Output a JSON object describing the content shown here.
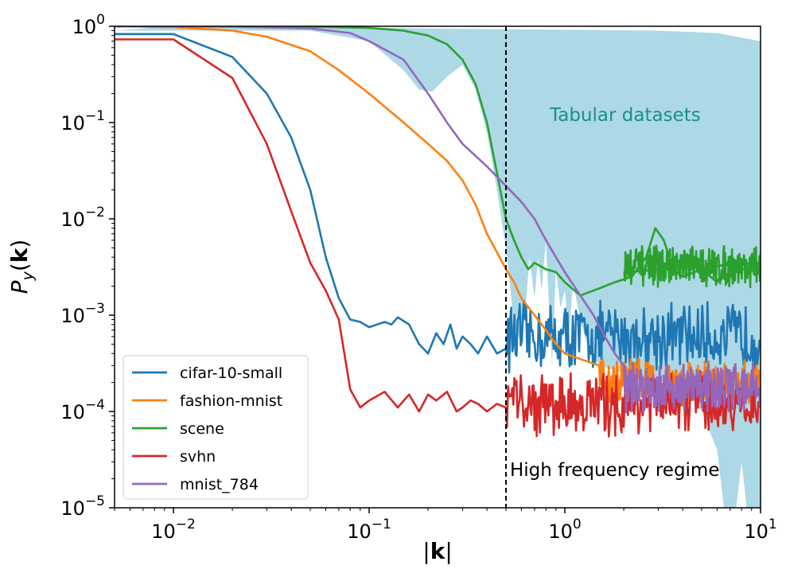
{
  "chart_data": {
    "type": "line",
    "xscale": "log",
    "yscale": "log",
    "xlim": [
      0.005,
      10
    ],
    "ylim": [
      1e-05,
      1
    ],
    "xlabel": "|k|",
    "ylabel": "P_y(k)",
    "x_ticks": [
      {
        "base": "10",
        "exp": "−2",
        "value": 0.01
      },
      {
        "base": "10",
        "exp": "−1",
        "value": 0.1
      },
      {
        "base": "10",
        "exp": "0",
        "value": 1
      },
      {
        "base": "10",
        "exp": "1",
        "value": 10
      }
    ],
    "y_ticks": [
      {
        "base": "10",
        "exp": "0",
        "value": 1
      },
      {
        "base": "10",
        "exp": "−1",
        "value": 0.1
      },
      {
        "base": "10",
        "exp": "−2",
        "value": 0.01
      },
      {
        "base": "10",
        "exp": "−3",
        "value": 0.001
      },
      {
        "base": "10",
        "exp": "−4",
        "value": 0.0001
      },
      {
        "base": "10",
        "exp": "−5",
        "value": 1e-05
      }
    ],
    "vline": {
      "x": 0.5,
      "style": "dashed",
      "label": "High frequency regime"
    },
    "shaded_region": {
      "label": "Tabular datasets",
      "color": "#add8e6",
      "label_color": "#1a8f8f",
      "upper": [
        [
          0.01,
          1
        ],
        [
          0.05,
          0.99
        ],
        [
          0.1,
          0.97
        ],
        [
          0.2,
          0.95
        ],
        [
          0.5,
          0.93
        ],
        [
          1,
          0.92
        ],
        [
          3,
          0.9
        ],
        [
          6,
          0.85
        ],
        [
          10,
          0.7
        ]
      ],
      "lower": [
        [
          0.005,
          0.9
        ],
        [
          0.05,
          0.9
        ],
        [
          0.1,
          0.7
        ],
        [
          0.15,
          0.35
        ],
        [
          0.18,
          0.22
        ],
        [
          0.21,
          0.21
        ],
        [
          0.25,
          0.3
        ],
        [
          0.3,
          0.4
        ],
        [
          0.35,
          0.22
        ],
        [
          0.4,
          0.08
        ],
        [
          0.45,
          0.02
        ],
        [
          0.5,
          0.005
        ],
        [
          0.55,
          0.0008
        ],
        [
          0.6,
          0.0005
        ],
        [
          0.63,
          0.0012
        ],
        [
          0.66,
          0.004
        ],
        [
          0.7,
          0.0015
        ],
        [
          0.73,
          0.004
        ],
        [
          0.76,
          0.0018
        ],
        [
          0.8,
          0.006
        ],
        [
          0.83,
          0.0012
        ],
        [
          0.86,
          0.0003
        ],
        [
          0.9,
          0.003
        ],
        [
          0.95,
          0.0012
        ],
        [
          1.0,
          0.0018
        ],
        [
          1.05,
          0.0006
        ],
        [
          1.1,
          0.0022
        ],
        [
          1.2,
          0.0009
        ],
        [
          1.3,
          0.0005
        ],
        [
          1.5,
          0.0003
        ],
        [
          2.0,
          0.00025
        ],
        [
          3.0,
          0.00022
        ],
        [
          4.0,
          0.00018
        ],
        [
          5.0,
          0.0001
        ],
        [
          6.0,
          4e-05
        ],
        [
          6.5,
          1e-05
        ],
        [
          7.5,
          1e-05
        ],
        [
          8.0,
          3e-05
        ],
        [
          8.5,
          1e-05
        ],
        [
          10,
          1e-05
        ]
      ]
    },
    "legend_position": "lower-left",
    "series": [
      {
        "name": "cifar-10-small",
        "color": "#1f77b4",
        "points": [
          [
            0.005,
            0.83
          ],
          [
            0.01,
            0.83
          ],
          [
            0.02,
            0.48
          ],
          [
            0.03,
            0.2
          ],
          [
            0.04,
            0.07
          ],
          [
            0.05,
            0.02
          ],
          [
            0.06,
            0.004
          ],
          [
            0.07,
            0.0015
          ],
          [
            0.08,
            0.0009
          ],
          [
            0.09,
            0.00085
          ],
          [
            0.1,
            0.00075
          ],
          [
            0.11,
            0.0008
          ],
          [
            0.12,
            0.00085
          ],
          [
            0.13,
            0.0008
          ],
          [
            0.14,
            0.00095
          ],
          [
            0.16,
            0.0008
          ],
          [
            0.18,
            0.0005
          ],
          [
            0.2,
            0.0004
          ],
          [
            0.22,
            0.00065
          ],
          [
            0.24,
            0.0005
          ],
          [
            0.26,
            0.0008
          ],
          [
            0.28,
            0.00045
          ],
          [
            0.3,
            0.0006
          ],
          [
            0.33,
            0.0005
          ],
          [
            0.36,
            0.0004
          ],
          [
            0.4,
            0.0006
          ],
          [
            0.45,
            0.0004
          ],
          [
            0.5,
            0.00045
          ]
        ],
        "noise": {
          "x_range": [
            0.5,
            10
          ],
          "center": 0.0006,
          "amp": 0.3
        }
      },
      {
        "name": "fashion-mnist",
        "color": "#ff7f0e",
        "points": [
          [
            0.005,
            1
          ],
          [
            0.01,
            0.98
          ],
          [
            0.02,
            0.9
          ],
          [
            0.03,
            0.78
          ],
          [
            0.05,
            0.55
          ],
          [
            0.07,
            0.35
          ],
          [
            0.1,
            0.2
          ],
          [
            0.15,
            0.1
          ],
          [
            0.2,
            0.06
          ],
          [
            0.25,
            0.04
          ],
          [
            0.3,
            0.025
          ],
          [
            0.35,
            0.014
          ],
          [
            0.4,
            0.007
          ],
          [
            0.45,
            0.0045
          ],
          [
            0.5,
            0.003
          ],
          [
            0.55,
            0.0022
          ],
          [
            0.6,
            0.0015
          ],
          [
            0.7,
            0.001
          ],
          [
            0.8,
            0.0007
          ],
          [
            0.9,
            0.0005
          ],
          [
            1.0,
            0.0004
          ],
          [
            1.2,
            0.00035
          ],
          [
            1.5,
            0.0003
          ]
        ],
        "noise": {
          "x_range": [
            1.5,
            10
          ],
          "center": 0.0002,
          "amp": 0.22
        }
      },
      {
        "name": "scene",
        "color": "#2ca02c",
        "points": [
          [
            0.005,
            1
          ],
          [
            0.02,
            1
          ],
          [
            0.05,
            0.99
          ],
          [
            0.1,
            0.96
          ],
          [
            0.15,
            0.9
          ],
          [
            0.2,
            0.8
          ],
          [
            0.25,
            0.65
          ],
          [
            0.3,
            0.45
          ],
          [
            0.35,
            0.25
          ],
          [
            0.4,
            0.1
          ],
          [
            0.45,
            0.03
          ],
          [
            0.5,
            0.01
          ],
          [
            0.55,
            0.006
          ],
          [
            0.6,
            0.004
          ],
          [
            0.65,
            0.003
          ],
          [
            0.7,
            0.0035
          ],
          [
            0.8,
            0.003
          ],
          [
            0.9,
            0.0028
          ],
          [
            1.0,
            0.0022
          ],
          [
            1.2,
            0.0016
          ],
          [
            1.5,
            0.0019
          ],
          [
            1.8,
            0.0022
          ],
          [
            2.2,
            0.0025
          ],
          [
            2.6,
            0.004
          ],
          [
            2.9,
            0.008
          ],
          [
            3.2,
            0.006
          ],
          [
            3.6,
            0.003
          ],
          [
            4.0,
            0.0025
          ],
          [
            5.0,
            0.003
          ],
          [
            6.0,
            0.0022
          ],
          [
            7.0,
            0.004
          ],
          [
            8.0,
            0.003
          ],
          [
            9.0,
            0.003
          ],
          [
            10,
            0.0035
          ]
        ],
        "noise": {
          "x_range": [
            2.0,
            10
          ],
          "center": 0.0032,
          "amp": 0.18
        }
      },
      {
        "name": "svhn",
        "color": "#d62728",
        "points": [
          [
            0.005,
            0.73
          ],
          [
            0.01,
            0.73
          ],
          [
            0.02,
            0.29
          ],
          [
            0.03,
            0.06
          ],
          [
            0.04,
            0.012
          ],
          [
            0.05,
            0.0035
          ],
          [
            0.06,
            0.0018
          ],
          [
            0.07,
            0.0009
          ],
          [
            0.08,
            0.00017
          ],
          [
            0.09,
            0.00011
          ],
          [
            0.1,
            0.00013
          ],
          [
            0.12,
            0.00016
          ],
          [
            0.14,
            0.00011
          ],
          [
            0.16,
            0.00015
          ],
          [
            0.18,
            0.0001
          ],
          [
            0.2,
            0.00015
          ],
          [
            0.22,
            0.00013
          ],
          [
            0.25,
            0.00016
          ],
          [
            0.28,
            0.0001
          ],
          [
            0.3,
            0.00011
          ],
          [
            0.33,
            0.00013
          ],
          [
            0.36,
            0.00012
          ],
          [
            0.4,
            0.0001
          ],
          [
            0.45,
            0.00012
          ],
          [
            0.5,
            0.00011
          ]
        ],
        "noise": {
          "x_range": [
            0.5,
            10
          ],
          "center": 0.00012,
          "amp": 0.28
        }
      },
      {
        "name": "mnist_784",
        "color": "#9467bd",
        "points": [
          [
            0.005,
            1
          ],
          [
            0.02,
            0.99
          ],
          [
            0.05,
            0.95
          ],
          [
            0.08,
            0.85
          ],
          [
            0.1,
            0.7
          ],
          [
            0.15,
            0.45
          ],
          [
            0.2,
            0.2
          ],
          [
            0.25,
            0.1
          ],
          [
            0.3,
            0.06
          ],
          [
            0.35,
            0.045
          ],
          [
            0.4,
            0.035
          ],
          [
            0.5,
            0.022
          ],
          [
            0.6,
            0.015
          ],
          [
            0.7,
            0.01
          ],
          [
            0.8,
            0.006
          ],
          [
            0.9,
            0.004
          ],
          [
            1.0,
            0.0028
          ],
          [
            1.2,
            0.0016
          ],
          [
            1.4,
            0.001
          ],
          [
            1.6,
            0.0006
          ],
          [
            1.8,
            0.0004
          ],
          [
            2.0,
            0.0003
          ]
        ],
        "noise": {
          "x_range": [
            2.0,
            10
          ],
          "center": 0.00018,
          "amp": 0.22
        }
      }
    ]
  }
}
